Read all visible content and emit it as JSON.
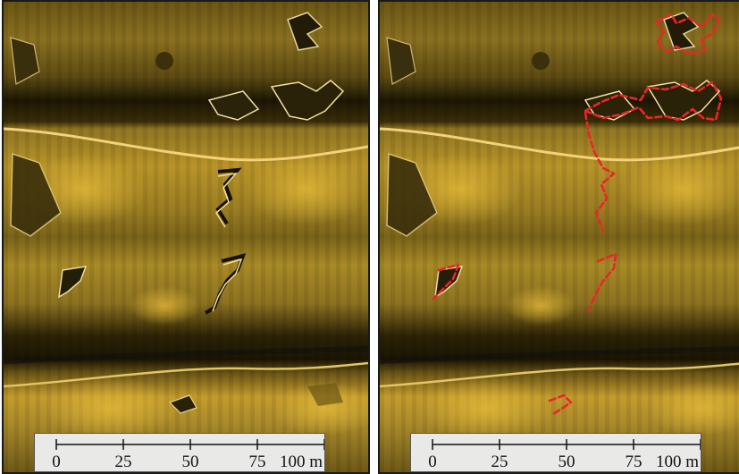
{
  "panels": [
    {
      "id": "left",
      "scale_bar": {
        "labels": [
          "0",
          "25",
          "50",
          "75",
          "100 m"
        ]
      },
      "annotated": false
    },
    {
      "id": "right",
      "scale_bar": {
        "labels": [
          "0",
          "25",
          "50",
          "75",
          "100 m"
        ]
      },
      "annotated": true,
      "annotation_color": "#e8262a"
    }
  ],
  "colors": {
    "sonar_bright": "#e0b63a",
    "sonar_dark": "#1e1804",
    "trace_outline": "#e8262a"
  }
}
